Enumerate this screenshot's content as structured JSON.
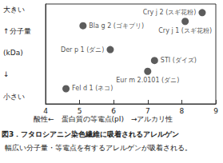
{
  "chart_data": {
    "type": "scatter",
    "xlabel": "酸性←　蛋白質の等電点(pI)　→アルカリ性",
    "ylabel": [
      "大きい",
      "↑分子量",
      "(kDa)",
      "↓",
      "小さい"
    ],
    "caption": [
      "図3．フタロシアニン染色繊維に吸着されるアレルゲン",
      "幅広い分子量・等電点を有するアレルゲンが吸着される。"
    ],
    "point_labels": [
      "Fel d 1 (ネコ)",
      "Bla g 2 (ゴキブリ)",
      "Der p 1 (ダニ)",
      "Eur m 2.0101 (ダニ)",
      "STI (ダイズ)",
      "Cry j 1 (スギ花粉)",
      "Cry j 2 (スギ花粉)"
    ],
    "x": [
      4.6,
      5.1,
      5.9,
      7.0,
      7.2,
      8.1,
      8.6
    ],
    "values": [
      7,
      36,
      25,
      15,
      20,
      38,
      42
    ],
    "color": "#333333",
    "xlim": [
      4,
      9
    ],
    "xticks": [
      4,
      5,
      6,
      7,
      8,
      9
    ],
    "ylim": [
      0,
      46
    ],
    "tick_labels": "x",
    "data_labels": true,
    "grid": false
  }
}
